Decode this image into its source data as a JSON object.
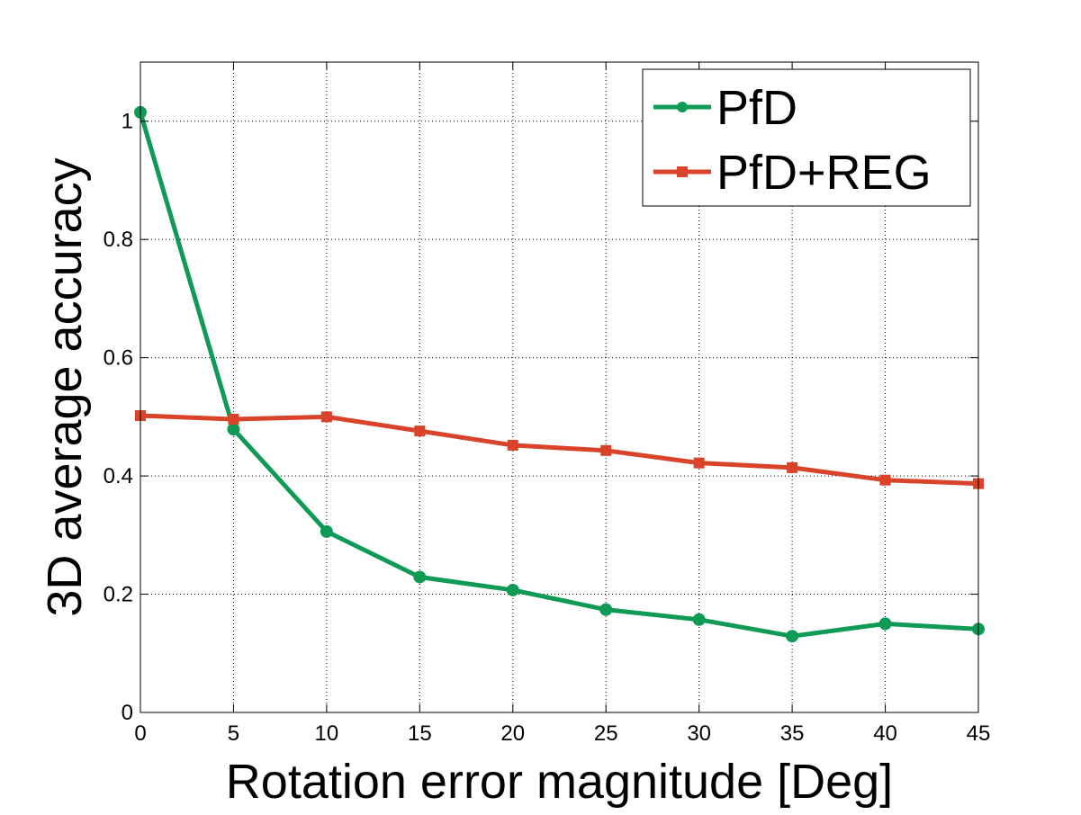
{
  "chart_data": {
    "type": "line",
    "title": "",
    "xlabel": "Rotation error magnitude [Deg]",
    "ylabel": "3D average accuracy",
    "x": [
      0,
      5,
      10,
      15,
      20,
      25,
      30,
      35,
      40,
      45
    ],
    "xlim": [
      0,
      45
    ],
    "ylim": [
      0,
      1.1
    ],
    "xticks": [
      0,
      5,
      10,
      15,
      20,
      25,
      30,
      35,
      40,
      45
    ],
    "yticks": [
      0,
      0.2,
      0.4,
      0.6,
      0.8,
      1
    ],
    "xtick_labels": [
      "0",
      "5",
      "10",
      "15",
      "20",
      "25",
      "30",
      "35",
      "40",
      "45"
    ],
    "ytick_labels": [
      "0",
      "0.2",
      "0.4",
      "0.6",
      "0.8",
      "1"
    ],
    "grid": true,
    "legend_position": "top-right",
    "series": [
      {
        "name": "PfD",
        "color": "#0f9a55",
        "marker": "circle",
        "values": [
          1.015,
          0.479,
          0.306,
          0.229,
          0.207,
          0.174,
          0.157,
          0.129,
          0.15,
          0.141
        ]
      },
      {
        "name": "PfD+REG",
        "color": "#d8432a",
        "marker": "square",
        "values": [
          0.502,
          0.496,
          0.5,
          0.476,
          0.452,
          0.443,
          0.422,
          0.414,
          0.393,
          0.387
        ]
      }
    ]
  }
}
